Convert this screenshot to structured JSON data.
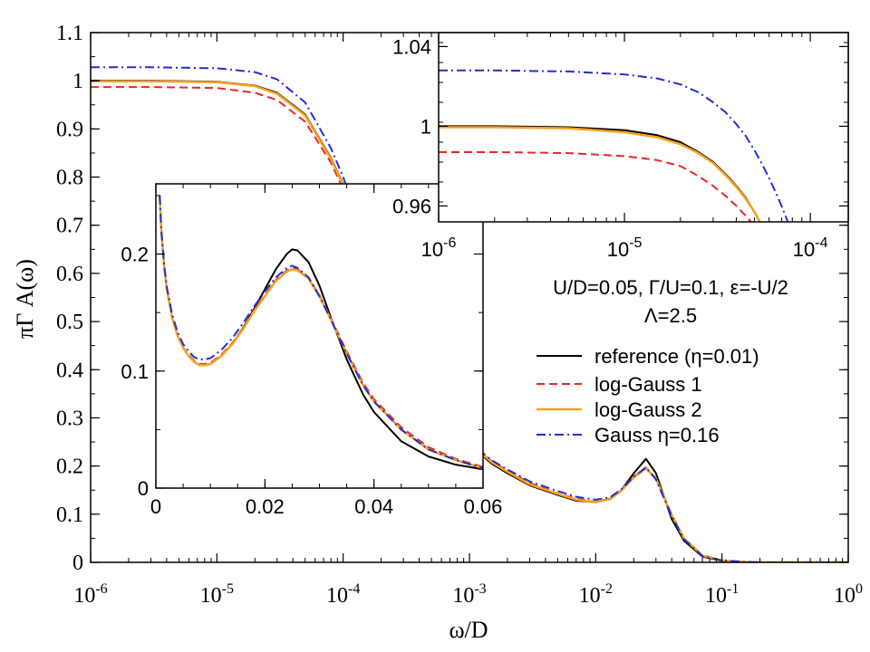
{
  "chart_data": [
    {
      "type": "line",
      "panel": "main",
      "xlabel": "ω/D",
      "ylabel": "πΓ A(ω)",
      "xscale": "log",
      "xlim": [
        1e-06,
        1
      ],
      "ylim": [
        0,
        1.1
      ],
      "x_ticks": [
        {
          "value": 1e-06,
          "base": "10",
          "exp": "-6"
        },
        {
          "value": 1e-05,
          "base": "10",
          "exp": "-5"
        },
        {
          "value": 0.0001,
          "base": "10",
          "exp": "-4"
        },
        {
          "value": 0.001,
          "base": "10",
          "exp": "-3"
        },
        {
          "value": 0.01,
          "base": "10",
          "exp": "-2"
        },
        {
          "value": 0.1,
          "base": "10",
          "exp": "-1"
        },
        {
          "value": 1,
          "base": "10",
          "exp": "0"
        }
      ],
      "y_ticks": [
        {
          "value": 0,
          "label": "0"
        },
        {
          "value": 0.1,
          "label": "0.1"
        },
        {
          "value": 0.2,
          "label": "0.2"
        },
        {
          "value": 0.3,
          "label": "0.3"
        },
        {
          "value": 0.4,
          "label": "0.4"
        },
        {
          "value": 0.5,
          "label": "0.5"
        },
        {
          "value": 0.6,
          "label": "0.6"
        },
        {
          "value": 0.7,
          "label": "0.7"
        },
        {
          "value": 0.8,
          "label": "0.8"
        },
        {
          "value": 0.9,
          "label": "0.9"
        },
        {
          "value": 1,
          "label": "1"
        },
        {
          "value": 1.1,
          "label": "1.1"
        }
      ],
      "grid": false,
      "legend_position": "right-center",
      "annotations": [
        "U/D=0.05, Γ/U=0.1, ε=-U/2",
        "Λ=2.5"
      ],
      "series": [
        {
          "name": "reference (η=0.01)",
          "color": "#000000",
          "dash": "solid",
          "x": [
            1e-06,
            3e-06,
            1e-05,
            2e-05,
            3e-05,
            5e-05,
            8e-05,
            0.0001,
            0.00015,
            0.0002,
            0.0003,
            0.0005,
            0.0008,
            0.001,
            0.0015,
            0.002,
            0.003,
            0.005,
            0.007,
            0.01,
            0.013,
            0.016,
            0.02,
            0.025,
            0.03,
            0.04,
            0.05,
            0.07,
            0.1,
            0.15,
            0.2,
            0.3,
            1
          ],
          "y": [
            1.0,
            1.0,
            0.998,
            0.99,
            0.975,
            0.93,
            0.84,
            0.785,
            0.66,
            0.57,
            0.45,
            0.34,
            0.27,
            0.245,
            0.205,
            0.185,
            0.16,
            0.14,
            0.128,
            0.125,
            0.132,
            0.15,
            0.185,
            0.215,
            0.185,
            0.09,
            0.045,
            0.012,
            0.003,
            0.001,
            0,
            0,
            0
          ]
        },
        {
          "name": "log-Gauss 1",
          "color": "#e8262a",
          "dash": "dashed",
          "x": [
            1e-06,
            3e-06,
            1e-05,
            2e-05,
            3e-05,
            5e-05,
            8e-05,
            0.0001,
            0.00015,
            0.0002,
            0.0003,
            0.0005,
            0.0008,
            0.001,
            0.0015,
            0.002,
            0.003,
            0.005,
            0.007,
            0.01,
            0.013,
            0.016,
            0.02,
            0.025,
            0.03,
            0.04,
            0.05,
            0.07,
            0.1,
            0.15,
            0.2,
            0.3,
            1
          ],
          "y": [
            0.987,
            0.987,
            0.985,
            0.975,
            0.96,
            0.915,
            0.83,
            0.775,
            0.655,
            0.565,
            0.445,
            0.34,
            0.272,
            0.247,
            0.21,
            0.19,
            0.165,
            0.143,
            0.132,
            0.126,
            0.132,
            0.15,
            0.178,
            0.197,
            0.175,
            0.1,
            0.05,
            0.015,
            0.004,
            0.001,
            0,
            0,
            0
          ]
        },
        {
          "name": "log-Gauss 2",
          "color": "#f5a21b",
          "dash": "solid",
          "x": [
            1e-06,
            3e-06,
            1e-05,
            2e-05,
            3e-05,
            5e-05,
            8e-05,
            0.0001,
            0.00015,
            0.0002,
            0.0003,
            0.0005,
            0.0008,
            0.001,
            0.0015,
            0.002,
            0.003,
            0.005,
            0.007,
            0.01,
            0.013,
            0.016,
            0.02,
            0.025,
            0.03,
            0.04,
            0.05,
            0.07,
            0.1,
            0.15,
            0.2,
            0.3,
            1
          ],
          "y": [
            0.999,
            0.999,
            0.997,
            0.989,
            0.973,
            0.928,
            0.838,
            0.783,
            0.66,
            0.568,
            0.448,
            0.342,
            0.272,
            0.247,
            0.208,
            0.188,
            0.162,
            0.142,
            0.13,
            0.125,
            0.131,
            0.149,
            0.176,
            0.195,
            0.174,
            0.098,
            0.05,
            0.014,
            0.004,
            0.001,
            0,
            0,
            0
          ]
        },
        {
          "name": "Gauss η=0.16",
          "color": "#1f2fd6",
          "dash": "dashdot",
          "x": [
            1e-06,
            3e-06,
            1e-05,
            2e-05,
            3e-05,
            5e-05,
            8e-05,
            0.0001,
            0.00015,
            0.0002,
            0.0003,
            0.0005,
            0.0008,
            0.001,
            0.0015,
            0.002,
            0.003,
            0.005,
            0.007,
            0.01,
            0.013,
            0.016,
            0.02,
            0.025,
            0.03,
            0.04,
            0.05,
            0.07,
            0.1,
            0.15,
            0.2,
            0.3,
            1
          ],
          "y": [
            1.028,
            1.028,
            1.026,
            1.018,
            1.003,
            0.955,
            0.86,
            0.8,
            0.67,
            0.575,
            0.45,
            0.345,
            0.275,
            0.25,
            0.212,
            0.193,
            0.168,
            0.148,
            0.136,
            0.13,
            0.135,
            0.152,
            0.178,
            0.197,
            0.172,
            0.096,
            0.048,
            0.013,
            0.004,
            0.001,
            0,
            0,
            0
          ]
        }
      ]
    },
    {
      "type": "line",
      "panel": "inset-linear",
      "xscale": "linear",
      "xlim": [
        0,
        0.06
      ],
      "ylim": [
        0,
        0.26
      ],
      "x_ticks": [
        {
          "value": 0,
          "label": "0"
        },
        {
          "value": 0.02,
          "label": "0.02"
        },
        {
          "value": 0.04,
          "label": "0.04"
        },
        {
          "value": 0.06,
          "label": "0.06"
        }
      ],
      "y_ticks": [
        {
          "value": 0,
          "label": "0"
        },
        {
          "value": 0.1,
          "label": "0.1"
        },
        {
          "value": 0.2,
          "label": "0.2"
        }
      ],
      "series": [
        {
          "name": "reference (η=0.01)",
          "color": "#000000",
          "dash": "solid",
          "x": [
            0.0007,
            0.001,
            0.0015,
            0.002,
            0.003,
            0.004,
            0.005,
            0.006,
            0.007,
            0.008,
            0.009,
            0.01,
            0.012,
            0.014,
            0.016,
            0.018,
            0.02,
            0.022,
            0.024,
            0.025,
            0.026,
            0.028,
            0.03,
            0.032,
            0.035,
            0.038,
            0.04,
            0.045,
            0.05,
            0.055,
            0.06
          ],
          "y": [
            0.25,
            0.22,
            0.19,
            0.17,
            0.145,
            0.13,
            0.12,
            0.113,
            0.108,
            0.105,
            0.105,
            0.106,
            0.113,
            0.123,
            0.137,
            0.153,
            0.17,
            0.187,
            0.2,
            0.204,
            0.203,
            0.193,
            0.173,
            0.147,
            0.11,
            0.08,
            0.065,
            0.04,
            0.027,
            0.02,
            0.016
          ]
        },
        {
          "name": "log-Gauss 1",
          "color": "#e8262a",
          "dash": "dashed",
          "x": [
            0.0007,
            0.001,
            0.0015,
            0.002,
            0.003,
            0.004,
            0.005,
            0.006,
            0.007,
            0.008,
            0.009,
            0.01,
            0.012,
            0.014,
            0.016,
            0.018,
            0.02,
            0.022,
            0.024,
            0.025,
            0.026,
            0.028,
            0.03,
            0.032,
            0.035,
            0.038,
            0.04,
            0.045,
            0.05,
            0.055,
            0.06
          ],
          "y": [
            0.25,
            0.22,
            0.19,
            0.17,
            0.145,
            0.13,
            0.12,
            0.114,
            0.109,
            0.106,
            0.106,
            0.107,
            0.114,
            0.124,
            0.137,
            0.152,
            0.165,
            0.178,
            0.186,
            0.188,
            0.187,
            0.18,
            0.165,
            0.146,
            0.117,
            0.09,
            0.076,
            0.052,
            0.035,
            0.025,
            0.018
          ]
        },
        {
          "name": "log-Gauss 2",
          "color": "#f5a21b",
          "dash": "solid",
          "x": [
            0.0007,
            0.001,
            0.0015,
            0.002,
            0.003,
            0.004,
            0.005,
            0.006,
            0.007,
            0.008,
            0.009,
            0.01,
            0.012,
            0.014,
            0.016,
            0.018,
            0.02,
            0.022,
            0.024,
            0.025,
            0.026,
            0.028,
            0.03,
            0.032,
            0.035,
            0.038,
            0.04,
            0.045,
            0.05,
            0.055,
            0.06
          ],
          "y": [
            0.25,
            0.22,
            0.19,
            0.17,
            0.145,
            0.13,
            0.12,
            0.113,
            0.108,
            0.105,
            0.105,
            0.106,
            0.113,
            0.123,
            0.136,
            0.151,
            0.164,
            0.177,
            0.185,
            0.187,
            0.186,
            0.179,
            0.164,
            0.145,
            0.115,
            0.088,
            0.074,
            0.05,
            0.033,
            0.024,
            0.017
          ]
        },
        {
          "name": "Gauss η=0.16",
          "color": "#1f2fd6",
          "dash": "dashdot",
          "x": [
            0.0007,
            0.001,
            0.0015,
            0.002,
            0.003,
            0.004,
            0.005,
            0.006,
            0.007,
            0.008,
            0.009,
            0.01,
            0.012,
            0.014,
            0.016,
            0.018,
            0.02,
            0.022,
            0.024,
            0.025,
            0.026,
            0.028,
            0.03,
            0.032,
            0.035,
            0.038,
            0.04,
            0.045,
            0.05,
            0.055,
            0.06
          ],
          "y": [
            0.25,
            0.22,
            0.192,
            0.172,
            0.148,
            0.133,
            0.123,
            0.117,
            0.112,
            0.11,
            0.11,
            0.111,
            0.118,
            0.128,
            0.141,
            0.155,
            0.168,
            0.18,
            0.188,
            0.19,
            0.188,
            0.18,
            0.164,
            0.145,
            0.115,
            0.088,
            0.074,
            0.05,
            0.033,
            0.024,
            0.017
          ]
        }
      ]
    },
    {
      "type": "line",
      "panel": "inset-log-zoom",
      "xscale": "log",
      "xlim": [
        1e-06,
        0.00016
      ],
      "ylim": [
        0.952,
        1.047
      ],
      "x_ticks": [
        {
          "value": 1e-06,
          "base": "10",
          "exp": "-6"
        },
        {
          "value": 1e-05,
          "base": "10",
          "exp": "-5"
        },
        {
          "value": 0.0001,
          "base": "10",
          "exp": "-4"
        }
      ],
      "y_ticks": [
        {
          "value": 0.96,
          "label": "0.96"
        },
        {
          "value": 1,
          "label": "1"
        },
        {
          "value": 1.04,
          "label": "1.04"
        }
      ],
      "series": [
        {
          "name": "reference (η=0.01)",
          "color": "#000000",
          "dash": "solid",
          "x": [
            1e-06,
            2e-06,
            5e-06,
            1e-05,
            1.5e-05,
            2e-05,
            2.5e-05,
            3e-05,
            3.5e-05,
            4e-05,
            4.5e-05,
            5e-05,
            5.5e-05,
            6e-05,
            6.5e-05,
            7e-05
          ],
          "y": [
            1.0,
            1.0,
            0.9995,
            0.998,
            0.9955,
            0.992,
            0.987,
            0.982,
            0.976,
            0.97,
            0.964,
            0.957,
            0.95,
            0.943,
            0.936,
            0.929
          ]
        },
        {
          "name": "log-Gauss 1",
          "color": "#e8262a",
          "dash": "dashed",
          "x": [
            1e-06,
            2e-06,
            5e-06,
            1e-05,
            1.5e-05,
            2e-05,
            2.5e-05,
            3e-05,
            3.5e-05,
            4e-05,
            4.5e-05,
            5e-05,
            5.5e-05,
            6e-05,
            6.5e-05
          ],
          "y": [
            0.987,
            0.987,
            0.9865,
            0.985,
            0.983,
            0.98,
            0.975,
            0.97,
            0.965,
            0.96,
            0.955,
            0.95,
            0.945,
            0.94,
            0.935
          ]
        },
        {
          "name": "log-Gauss 2",
          "color": "#f5a21b",
          "dash": "solid",
          "x": [
            1e-06,
            2e-06,
            5e-06,
            1e-05,
            1.5e-05,
            2e-05,
            2.5e-05,
            3e-05,
            3.5e-05,
            4e-05,
            4.5e-05,
            5e-05,
            5.5e-05,
            6e-05,
            6.5e-05
          ],
          "y": [
            0.9995,
            0.9995,
            0.999,
            0.997,
            0.9945,
            0.991,
            0.9865,
            0.9815,
            0.9755,
            0.9695,
            0.9635,
            0.957,
            0.95,
            0.943,
            0.936
          ]
        },
        {
          "name": "Gauss η=0.16",
          "color": "#1f2fd6",
          "dash": "dashdot",
          "x": [
            1e-06,
            2e-06,
            5e-06,
            1e-05,
            1.5e-05,
            2e-05,
            2.5e-05,
            3e-05,
            3.5e-05,
            4e-05,
            4.5e-05,
            5e-05,
            5.5e-05,
            6e-05,
            6.5e-05,
            7e-05,
            7.5e-05,
            8e-05,
            9e-05
          ],
          "y": [
            1.028,
            1.028,
            1.0275,
            1.026,
            1.024,
            1.021,
            1.017,
            1.012,
            1.007,
            1.001,
            0.995,
            0.988,
            0.981,
            0.974,
            0.967,
            0.96,
            0.953,
            0.946,
            0.932
          ]
        }
      ]
    }
  ]
}
